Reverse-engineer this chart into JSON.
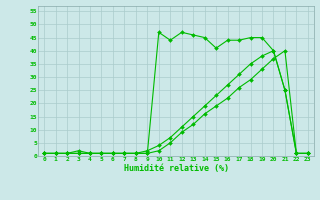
{
  "xlabel": "Humidité relative (%)",
  "bg_color": "#cce8e8",
  "grid_color": "#aacccc",
  "line_color": "#00bb00",
  "xlim": [
    -0.5,
    23.5
  ],
  "ylim": [
    0,
    57
  ],
  "yticks": [
    0,
    5,
    10,
    15,
    20,
    25,
    30,
    35,
    40,
    45,
    50,
    55
  ],
  "xticks": [
    0,
    1,
    2,
    3,
    4,
    5,
    6,
    7,
    8,
    9,
    10,
    11,
    12,
    13,
    14,
    15,
    16,
    17,
    18,
    19,
    20,
    21,
    22,
    23
  ],
  "series1_x": [
    0,
    1,
    2,
    3,
    4,
    5,
    6,
    7,
    8,
    9,
    10,
    11,
    12,
    13,
    14,
    15,
    16,
    17,
    18,
    19,
    20,
    21,
    22,
    23
  ],
  "series1_y": [
    1,
    1,
    1,
    2,
    1,
    1,
    1,
    1,
    1,
    1,
    47,
    44,
    47,
    46,
    45,
    41,
    44,
    44,
    45,
    45,
    40,
    25,
    1,
    1
  ],
  "series2_x": [
    0,
    1,
    2,
    3,
    4,
    5,
    6,
    7,
    8,
    9,
    10,
    11,
    12,
    13,
    14,
    15,
    16,
    17,
    18,
    19,
    20,
    21,
    22,
    23
  ],
  "series2_y": [
    1,
    1,
    1,
    1,
    1,
    1,
    1,
    1,
    1,
    1,
    2,
    5,
    9,
    12,
    16,
    19,
    22,
    26,
    29,
    33,
    37,
    40,
    1,
    1
  ],
  "series3_x": [
    0,
    1,
    2,
    3,
    4,
    5,
    6,
    7,
    8,
    9,
    10,
    11,
    12,
    13,
    14,
    15,
    16,
    17,
    18,
    19,
    20,
    21,
    22,
    23
  ],
  "series3_y": [
    1,
    1,
    1,
    1,
    1,
    1,
    1,
    1,
    1,
    2,
    4,
    7,
    11,
    15,
    19,
    23,
    27,
    31,
    35,
    38,
    40,
    25,
    1,
    1
  ]
}
